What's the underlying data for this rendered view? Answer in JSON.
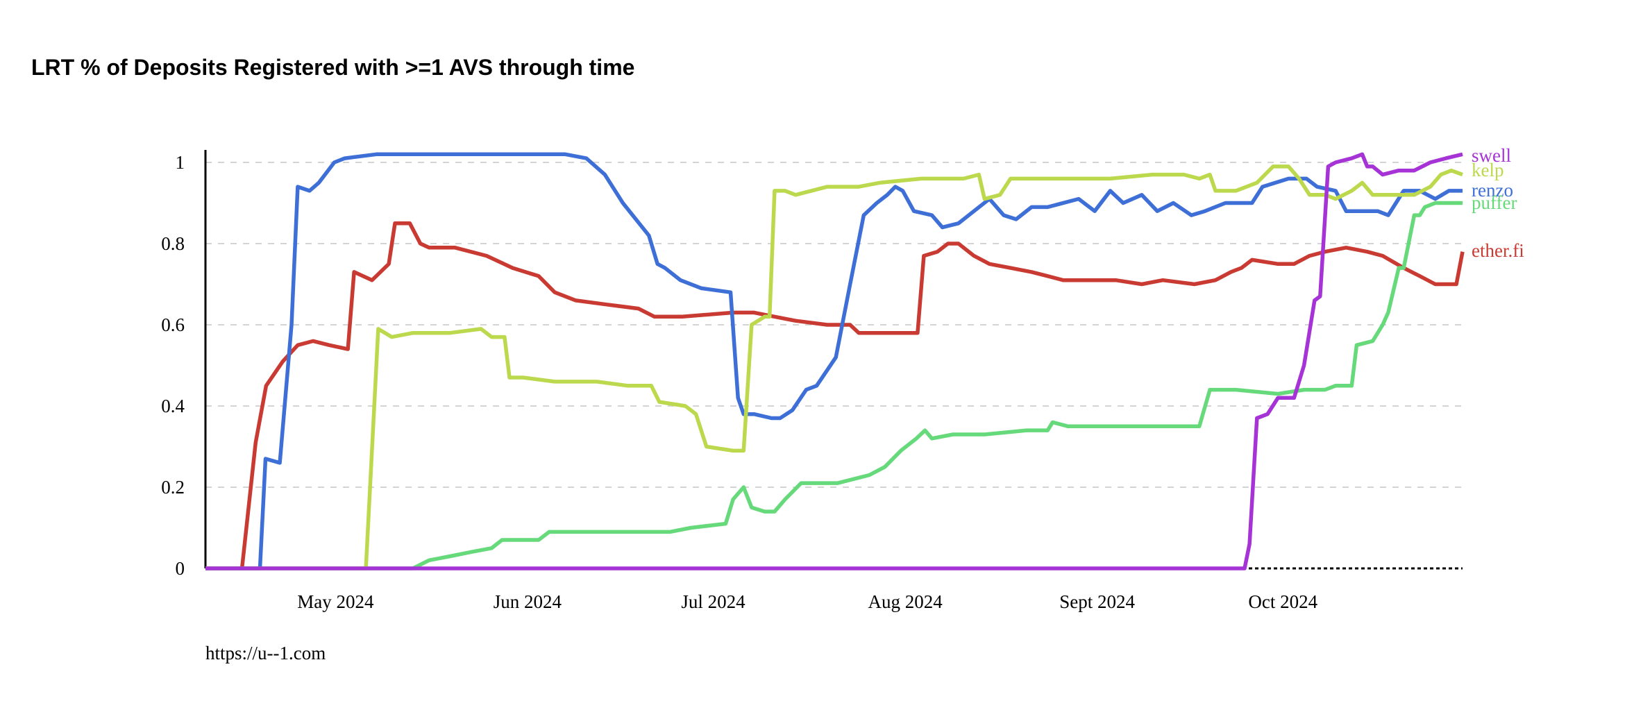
{
  "chart_data": {
    "type": "line",
    "title": "LRT % of Deposits Registered with >=1 AVS through time",
    "xlabel": "",
    "ylabel": "",
    "x_unit": "days since 2024-04-10",
    "x_origin": "2024-04-10",
    "xlim": [
      0,
      203
    ],
    "ylim": [
      0,
      1
    ],
    "grid": true,
    "y_ticks": [
      {
        "value": 0,
        "label": "0"
      },
      {
        "value": 0.2,
        "label": "0.2"
      },
      {
        "value": 0.4,
        "label": "0.4"
      },
      {
        "value": 0.6,
        "label": "0.6"
      },
      {
        "value": 0.8,
        "label": "0.8"
      },
      {
        "value": 1,
        "label": "1"
      }
    ],
    "x_ticks": [
      {
        "value": 21,
        "label": "May 2024"
      },
      {
        "value": 52,
        "label": "Jun 2024"
      },
      {
        "value": 82,
        "label": "Jul 2024"
      },
      {
        "value": 113,
        "label": "Aug 2024"
      },
      {
        "value": 144,
        "label": "Sept 2024"
      },
      {
        "value": 174,
        "label": "Oct 2024"
      }
    ],
    "legend": "right-end labels",
    "series": [
      {
        "name": "swell",
        "color": "#a633d6",
        "points": [
          [
            0,
            0
          ],
          [
            167.8,
            0
          ],
          [
            168.6,
            0.06
          ],
          [
            169.8,
            0.37
          ],
          [
            171.5,
            0.38
          ],
          [
            173.2,
            0.42
          ],
          [
            175.8,
            0.42
          ],
          [
            177.4,
            0.5
          ],
          [
            179.1,
            0.66
          ],
          [
            180.0,
            0.67
          ],
          [
            181.3,
            0.99
          ],
          [
            182.5,
            1.0
          ],
          [
            185.1,
            1.01
          ],
          [
            186.8,
            1.02
          ],
          [
            187.6,
            0.99
          ],
          [
            188.5,
            0.99
          ],
          [
            190.1,
            0.97
          ],
          [
            192.7,
            0.98
          ],
          [
            195.2,
            0.98
          ],
          [
            197.8,
            1.0
          ],
          [
            200.3,
            1.01
          ],
          [
            203,
            1.02
          ]
        ]
      },
      {
        "name": "kelp",
        "color": "#bcd94e",
        "points": [
          [
            0,
            0
          ],
          [
            25.9,
            0
          ],
          [
            27.9,
            0.59
          ],
          [
            30.1,
            0.57
          ],
          [
            33.5,
            0.58
          ],
          [
            39.5,
            0.58
          ],
          [
            44.5,
            0.59
          ],
          [
            46.2,
            0.57
          ],
          [
            48.3,
            0.57
          ],
          [
            49.1,
            0.47
          ],
          [
            51.3,
            0.47
          ],
          [
            56.4,
            0.46
          ],
          [
            63.2,
            0.46
          ],
          [
            68.2,
            0.45
          ],
          [
            72.0,
            0.45
          ],
          [
            73.3,
            0.41
          ],
          [
            77.5,
            0.4
          ],
          [
            79.2,
            0.38
          ],
          [
            80.9,
            0.3
          ],
          [
            85.2,
            0.29
          ],
          [
            86.9,
            0.29
          ],
          [
            88.2,
            0.6
          ],
          [
            90.3,
            0.62
          ],
          [
            91.1,
            0.62
          ],
          [
            91.9,
            0.93
          ],
          [
            93.6,
            0.93
          ],
          [
            95.3,
            0.92
          ],
          [
            100.4,
            0.94
          ],
          [
            105.5,
            0.94
          ],
          [
            108.9,
            0.95
          ],
          [
            115.6,
            0.96
          ],
          [
            122.4,
            0.96
          ],
          [
            124.9,
            0.97
          ],
          [
            125.8,
            0.91
          ],
          [
            128.3,
            0.92
          ],
          [
            130.0,
            0.96
          ],
          [
            134.3,
            0.96
          ],
          [
            139.3,
            0.96
          ],
          [
            146.1,
            0.96
          ],
          [
            152.9,
            0.97
          ],
          [
            158.0,
            0.97
          ],
          [
            160.5,
            0.96
          ],
          [
            162.2,
            0.97
          ],
          [
            163.1,
            0.93
          ],
          [
            166.4,
            0.93
          ],
          [
            169.8,
            0.95
          ],
          [
            172.4,
            0.99
          ],
          [
            174.9,
            0.99
          ],
          [
            176.6,
            0.96
          ],
          [
            178.3,
            0.92
          ],
          [
            180.8,
            0.92
          ],
          [
            182.5,
            0.91
          ],
          [
            185.1,
            0.93
          ],
          [
            186.8,
            0.95
          ],
          [
            188.5,
            0.92
          ],
          [
            191.8,
            0.92
          ],
          [
            195.2,
            0.92
          ],
          [
            197.8,
            0.94
          ],
          [
            199.5,
            0.97
          ],
          [
            201.2,
            0.98
          ],
          [
            203,
            0.97
          ]
        ]
      },
      {
        "name": "renzo",
        "color": "#3d6fd6",
        "points": [
          [
            0,
            0
          ],
          [
            8.8,
            0
          ],
          [
            9.7,
            0.27
          ],
          [
            12.0,
            0.26
          ],
          [
            13.9,
            0.6
          ],
          [
            14.9,
            0.94
          ],
          [
            16.8,
            0.93
          ],
          [
            18.3,
            0.95
          ],
          [
            20.8,
            1.0
          ],
          [
            22.5,
            1.01
          ],
          [
            27.6,
            1.02
          ],
          [
            54.7,
            1.02
          ],
          [
            58.1,
            1.02
          ],
          [
            61.5,
            1.01
          ],
          [
            64.5,
            0.97
          ],
          [
            67.4,
            0.9
          ],
          [
            71.6,
            0.82
          ],
          [
            73.0,
            0.75
          ],
          [
            74.2,
            0.74
          ],
          [
            76.7,
            0.71
          ],
          [
            80.1,
            0.69
          ],
          [
            84.8,
            0.68
          ],
          [
            86.0,
            0.42
          ],
          [
            86.9,
            0.38
          ],
          [
            88.6,
            0.38
          ],
          [
            91.4,
            0.37
          ],
          [
            92.8,
            0.37
          ],
          [
            94.8,
            0.39
          ],
          [
            97.0,
            0.44
          ],
          [
            98.7,
            0.45
          ],
          [
            101.8,
            0.52
          ],
          [
            104.1,
            0.7
          ],
          [
            106.3,
            0.87
          ],
          [
            108.4,
            0.9
          ],
          [
            110.1,
            0.92
          ],
          [
            111.4,
            0.94
          ],
          [
            112.6,
            0.93
          ],
          [
            114.4,
            0.88
          ],
          [
            117.3,
            0.87
          ],
          [
            119.0,
            0.84
          ],
          [
            121.6,
            0.85
          ],
          [
            126.6,
            0.91
          ],
          [
            128.9,
            0.87
          ],
          [
            130.9,
            0.86
          ],
          [
            133.4,
            0.89
          ],
          [
            136.0,
            0.89
          ],
          [
            141.0,
            0.91
          ],
          [
            143.6,
            0.88
          ],
          [
            146.1,
            0.93
          ],
          [
            148.2,
            0.9
          ],
          [
            151.2,
            0.92
          ],
          [
            153.7,
            0.88
          ],
          [
            156.3,
            0.9
          ],
          [
            159.2,
            0.87
          ],
          [
            161.4,
            0.88
          ],
          [
            164.7,
            0.9
          ],
          [
            169.0,
            0.9
          ],
          [
            170.7,
            0.94
          ],
          [
            174.9,
            0.96
          ],
          [
            177.8,
            0.96
          ],
          [
            179.5,
            0.94
          ],
          [
            182.5,
            0.93
          ],
          [
            184.2,
            0.88
          ],
          [
            186.8,
            0.88
          ],
          [
            189.3,
            0.88
          ],
          [
            191.0,
            0.87
          ],
          [
            193.5,
            0.93
          ],
          [
            196.1,
            0.93
          ],
          [
            198.6,
            0.91
          ],
          [
            200.8,
            0.93
          ],
          [
            203,
            0.93
          ]
        ]
      },
      {
        "name": "puffer",
        "color": "#66d97a",
        "points": [
          [
            0,
            0
          ],
          [
            33.5,
            0
          ],
          [
            36.1,
            0.02
          ],
          [
            39.5,
            0.03
          ],
          [
            42.8,
            0.04
          ],
          [
            46.2,
            0.05
          ],
          [
            47.9,
            0.07
          ],
          [
            53.8,
            0.07
          ],
          [
            55.5,
            0.09
          ],
          [
            61.5,
            0.09
          ],
          [
            68.2,
            0.09
          ],
          [
            75.0,
            0.09
          ],
          [
            78.4,
            0.1
          ],
          [
            84.0,
            0.11
          ],
          [
            85.2,
            0.17
          ],
          [
            86.9,
            0.2
          ],
          [
            88.2,
            0.15
          ],
          [
            90.3,
            0.14
          ],
          [
            91.9,
            0.14
          ],
          [
            93.6,
            0.17
          ],
          [
            96.2,
            0.21
          ],
          [
            102.1,
            0.21
          ],
          [
            107.2,
            0.23
          ],
          [
            109.7,
            0.25
          ],
          [
            112.3,
            0.29
          ],
          [
            114.8,
            0.32
          ],
          [
            116.2,
            0.34
          ],
          [
            117.3,
            0.32
          ],
          [
            120.7,
            0.33
          ],
          [
            125.8,
            0.33
          ],
          [
            132.6,
            0.34
          ],
          [
            136.0,
            0.34
          ],
          [
            136.8,
            0.36
          ],
          [
            139.3,
            0.35
          ],
          [
            146.1,
            0.35
          ],
          [
            152.9,
            0.35
          ],
          [
            160.5,
            0.35
          ],
          [
            162.2,
            0.44
          ],
          [
            166.4,
            0.44
          ],
          [
            173.2,
            0.43
          ],
          [
            177.4,
            0.44
          ],
          [
            180.8,
            0.44
          ],
          [
            182.5,
            0.45
          ],
          [
            185.1,
            0.45
          ],
          [
            185.9,
            0.55
          ],
          [
            188.5,
            0.56
          ],
          [
            190.1,
            0.6
          ],
          [
            191.0,
            0.63
          ],
          [
            192.7,
            0.74
          ],
          [
            193.5,
            0.74
          ],
          [
            195.2,
            0.87
          ],
          [
            196.1,
            0.87
          ],
          [
            196.9,
            0.89
          ],
          [
            198.6,
            0.9
          ],
          [
            203,
            0.9
          ]
        ]
      },
      {
        "name": "ether.fi",
        "color": "#c93b32",
        "points": [
          [
            0,
            0
          ],
          [
            5.9,
            0
          ],
          [
            8.1,
            0.31
          ],
          [
            9.8,
            0.45
          ],
          [
            12.5,
            0.51
          ],
          [
            14.9,
            0.55
          ],
          [
            17.4,
            0.56
          ],
          [
            20.0,
            0.55
          ],
          [
            23.0,
            0.54
          ],
          [
            24.0,
            0.73
          ],
          [
            26.9,
            0.71
          ],
          [
            29.6,
            0.75
          ],
          [
            30.6,
            0.85
          ],
          [
            33.0,
            0.85
          ],
          [
            34.7,
            0.8
          ],
          [
            36.1,
            0.79
          ],
          [
            40.3,
            0.79
          ],
          [
            45.4,
            0.77
          ],
          [
            49.6,
            0.74
          ],
          [
            53.8,
            0.72
          ],
          [
            56.4,
            0.68
          ],
          [
            59.8,
            0.66
          ],
          [
            64.8,
            0.65
          ],
          [
            69.9,
            0.64
          ],
          [
            72.5,
            0.62
          ],
          [
            77.0,
            0.62
          ],
          [
            85.2,
            0.63
          ],
          [
            88.6,
            0.63
          ],
          [
            91.9,
            0.62
          ],
          [
            95.3,
            0.61
          ],
          [
            100.4,
            0.6
          ],
          [
            104.1,
            0.6
          ],
          [
            105.5,
            0.58
          ],
          [
            110.6,
            0.58
          ],
          [
            115.0,
            0.58
          ],
          [
            116.0,
            0.77
          ],
          [
            118.2,
            0.78
          ],
          [
            119.9,
            0.8
          ],
          [
            121.6,
            0.8
          ],
          [
            124.1,
            0.77
          ],
          [
            126.6,
            0.75
          ],
          [
            130.0,
            0.74
          ],
          [
            133.4,
            0.73
          ],
          [
            136.0,
            0.72
          ],
          [
            138.5,
            0.71
          ],
          [
            142.7,
            0.71
          ],
          [
            147.0,
            0.71
          ],
          [
            151.2,
            0.7
          ],
          [
            154.6,
            0.71
          ],
          [
            159.7,
            0.7
          ],
          [
            163.1,
            0.71
          ],
          [
            165.6,
            0.73
          ],
          [
            167.3,
            0.74
          ],
          [
            169.0,
            0.76
          ],
          [
            173.2,
            0.75
          ],
          [
            175.8,
            0.75
          ],
          [
            178.3,
            0.77
          ],
          [
            180.8,
            0.78
          ],
          [
            184.2,
            0.79
          ],
          [
            187.6,
            0.78
          ],
          [
            190.1,
            0.77
          ],
          [
            193.5,
            0.74
          ],
          [
            196.1,
            0.72
          ],
          [
            198.6,
            0.7
          ],
          [
            201.2,
            0.7
          ],
          [
            202.0,
            0.7
          ],
          [
            203,
            0.78
          ]
        ]
      }
    ],
    "source_note": "https://u--1.com"
  }
}
